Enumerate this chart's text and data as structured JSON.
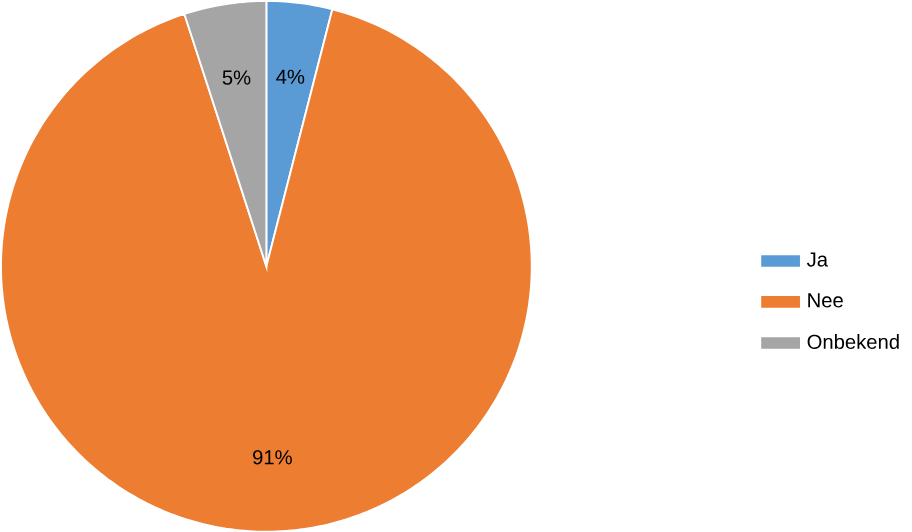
{
  "chart_data": {
    "type": "pie",
    "categories": [
      "Ja",
      "Nee",
      "Onbekend"
    ],
    "values": [
      4,
      91,
      5
    ],
    "colors": [
      "#5b9bd5",
      "#ed7d31",
      "#a5a5a5"
    ],
    "value_labels": [
      "4%",
      "91%",
      "5%"
    ],
    "legend": "right"
  }
}
